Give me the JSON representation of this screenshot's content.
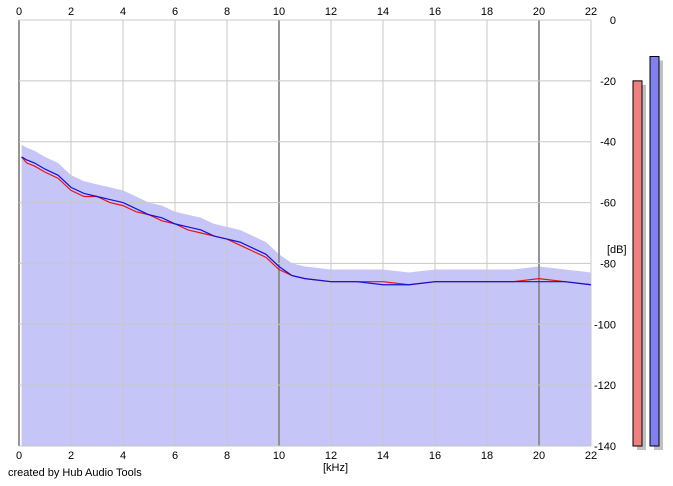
{
  "credit": "created by Hub Audio Tools",
  "chart_data": {
    "type": "line",
    "xlabel": "[kHz]",
    "ylabel": "[dB]",
    "xlim": [
      0,
      22
    ],
    "ylim": [
      -140,
      0
    ],
    "x_ticks": [
      "0",
      "2",
      "4",
      "6",
      "8",
      "10",
      "12",
      "14",
      "16",
      "18",
      "20",
      "22"
    ],
    "y_ticks": [
      "0",
      "-20",
      "-40",
      "-60",
      "-80",
      "-100",
      "-120",
      "-140"
    ],
    "grid": true,
    "colors": {
      "fill": "#c5c5f7",
      "left": "#ee1111",
      "right": "#1111dd",
      "grid": "#c8c8c8",
      "major_grid": "#8a8a8a"
    },
    "series": [
      {
        "x": [
          0.1,
          0.3,
          0.6,
          1.0,
          1.5,
          2.0,
          2.5,
          3.0,
          3.5,
          4.0,
          4.5,
          5.0,
          5.5,
          6.0,
          6.5,
          7.0,
          7.5,
          8.0,
          8.5,
          9.0,
          9.5,
          10.0,
          10.5,
          11.0,
          12.0,
          13.0,
          14.0,
          15.0,
          16.0,
          17.0,
          18.0,
          19.0,
          20.0,
          21.0,
          22.0
        ],
        "values": [
          -45,
          -47,
          -48,
          -50,
          -52,
          -56,
          -58,
          -58,
          -60,
          -61,
          -63,
          -64,
          -66,
          -67,
          -69,
          -70,
          -71,
          -72,
          -74,
          -76,
          -78,
          -82,
          -84,
          -85,
          -86,
          -86,
          -86,
          -87,
          -86,
          -86,
          -86,
          -86,
          -85,
          -86,
          -87
        ]
      },
      {
        "x": [
          0.1,
          0.3,
          0.6,
          1.0,
          1.5,
          2.0,
          2.5,
          3.0,
          3.5,
          4.0,
          4.5,
          5.0,
          5.5,
          6.0,
          6.5,
          7.0,
          7.5,
          8.0,
          8.5,
          9.0,
          9.5,
          10.0,
          10.5,
          11.0,
          12.0,
          13.0,
          14.0,
          15.0,
          16.0,
          17.0,
          18.0,
          19.0,
          20.0,
          21.0,
          22.0
        ],
        "values": [
          -45,
          -46,
          -47,
          -49,
          -51,
          -55,
          -57,
          -58,
          -59,
          -60,
          -62,
          -64,
          -65,
          -67,
          -68,
          -69,
          -71,
          -72,
          -73,
          -75,
          -77,
          -81,
          -84,
          -85,
          -86,
          -86,
          -87,
          -87,
          -86,
          -86,
          -86,
          -86,
          -86,
          -86,
          -87
        ]
      }
    ],
    "meters": [
      {
        "value_db": -20,
        "color": "#f08080"
      },
      {
        "value_db": -12,
        "color": "#8080f0"
      }
    ]
  }
}
